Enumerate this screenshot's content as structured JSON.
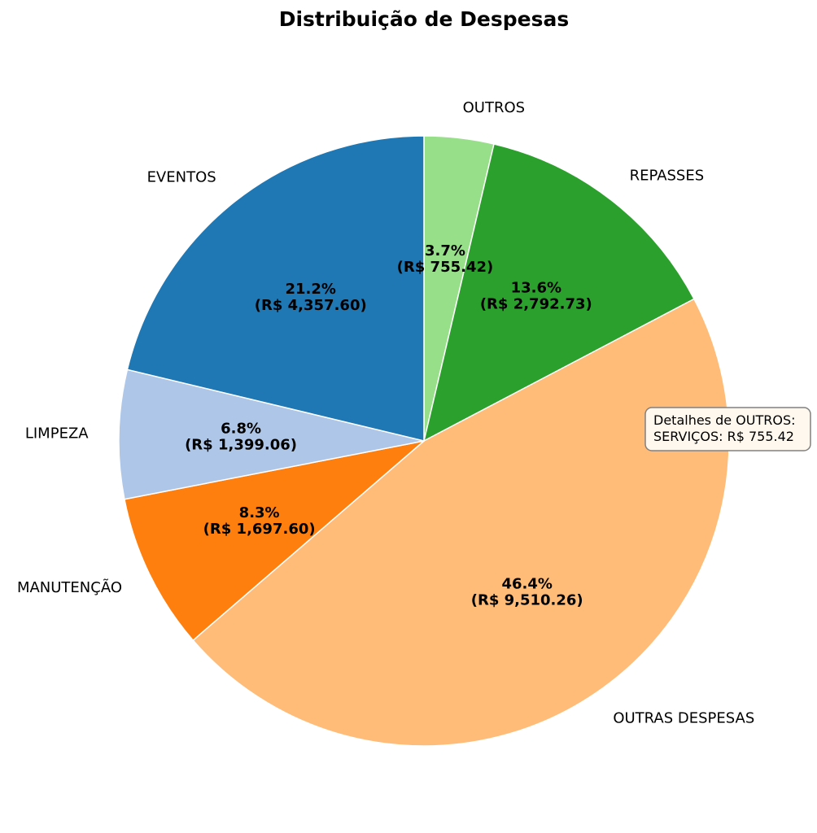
{
  "chart_data": {
    "type": "pie",
    "title": "Distribuição de Despesas",
    "start_angle_deg": 90,
    "direction": "clockwise",
    "slices": [
      {
        "label": "OUTROS",
        "value": 755.42,
        "percent": "3.7%",
        "value_text": "(R$ 755.42)",
        "color": "#98df8a"
      },
      {
        "label": "REPASSES",
        "value": 2792.73,
        "percent": "13.6%",
        "value_text": "(R$ 2,792.73)",
        "color": "#2ca02c"
      },
      {
        "label": "OUTRAS DESPESAS",
        "value": 9510.26,
        "percent": "46.4%",
        "value_text": "(R$ 9,510.26)",
        "color": "#ffbb78"
      },
      {
        "label": "MANUTENÇÃO",
        "value": 1697.6,
        "percent": "8.3%",
        "value_text": "(R$ 1,697.60)",
        "color": "#ff7f0e"
      },
      {
        "label": "LIMPEZA",
        "value": 1399.06,
        "percent": "6.8%",
        "value_text": "(R$ 1,399.06)",
        "color": "#aec7e8"
      },
      {
        "label": "EVENTOS",
        "value": 4357.6,
        "percent": "21.2%",
        "value_text": "(R$ 4,357.60)",
        "color": "#1f77b4"
      }
    ],
    "edge_color": "#ffffff",
    "annotation": {
      "lines": [
        "Detalhes de OUTROS:",
        "SERVIÇOS: R$ 755.42"
      ],
      "background": "#fff8ee",
      "border": "#808080"
    }
  }
}
